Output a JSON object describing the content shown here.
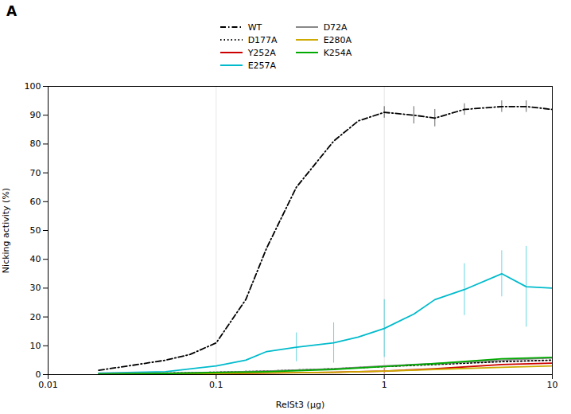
{
  "chart_data": {
    "type": "line",
    "title": "A",
    "xlabel": "RelSt3 (μg)",
    "ylabel": "Nicking activity (%)",
    "log": "x",
    "xlim": [
      0.01,
      10
    ],
    "xticks": [
      0.01,
      0.1,
      1,
      10
    ],
    "ylim": [
      0,
      100
    ],
    "yticks": [
      0,
      10,
      20,
      30,
      40,
      50,
      60,
      70,
      80,
      90,
      100
    ],
    "grid": "x",
    "legend": "top",
    "series": [
      {
        "name": "WT",
        "color": "#000000",
        "line_style": "dashdot",
        "x": [
          0.02,
          0.03,
          0.05,
          0.07,
          0.1,
          0.15,
          0.2,
          0.3,
          0.5,
          0.7,
          1.0,
          1.5,
          2.0,
          3.0,
          5.0,
          7.0,
          10.0
        ],
        "values": [
          1.5,
          3,
          5,
          7,
          11,
          26,
          44,
          65,
          81,
          88,
          91,
          90,
          89,
          92,
          93,
          93,
          92
        ],
        "errors": [
          0,
          0,
          0,
          0,
          0,
          0,
          0,
          0,
          0,
          0,
          2,
          3,
          3,
          2,
          2,
          2,
          2
        ]
      },
      {
        "name": "D177A",
        "color": "#000000",
        "line_style": "dotted",
        "x": [
          0.02,
          0.05,
          0.1,
          0.2,
          0.5,
          1.0,
          2.0,
          5.0,
          10.0
        ],
        "values": [
          0.3,
          0.5,
          0.8,
          1.2,
          2.0,
          2.8,
          3.5,
          4.5,
          5.0
        ],
        "errors": [
          0,
          0,
          0,
          0,
          0,
          0,
          0,
          0,
          0
        ]
      },
      {
        "name": "Y252A",
        "color": "#cc0000",
        "line_style": "solid",
        "x": [
          0.02,
          0.05,
          0.1,
          0.2,
          0.5,
          1.0,
          2.0,
          5.0,
          10.0
        ],
        "values": [
          0.1,
          0.2,
          0.3,
          0.5,
          0.8,
          1.2,
          2.0,
          3.5,
          4.0
        ],
        "errors": [
          0,
          0,
          0,
          0,
          0,
          1,
          0,
          0,
          0
        ]
      },
      {
        "name": "E257A",
        "color": "#00bbcc",
        "line_style": "solid",
        "x": [
          0.02,
          0.05,
          0.1,
          0.15,
          0.2,
          0.3,
          0.5,
          0.7,
          1.0,
          1.5,
          2.0,
          3.0,
          5.0,
          7.0,
          10.0
        ],
        "values": [
          0.5,
          1.0,
          3.0,
          5.0,
          8.0,
          9.5,
          11.0,
          13.0,
          16.0,
          21.0,
          26.0,
          29.5,
          35.0,
          30.5,
          30.0
        ],
        "errors": [
          0,
          0,
          0,
          0,
          0,
          5,
          7,
          0,
          10,
          0,
          0,
          9,
          8,
          14,
          0
        ]
      },
      {
        "name": "D72A",
        "color": "#888888",
        "line_style": "solid",
        "x": [
          0.02,
          0.05,
          0.1,
          0.2,
          0.5,
          1.0,
          2.0,
          5.0,
          10.0
        ],
        "values": [
          0.3,
          0.5,
          0.8,
          1.2,
          2.0,
          3.0,
          3.8,
          5.0,
          5.8
        ],
        "errors": [
          0,
          0,
          0,
          0,
          0,
          0,
          0,
          0,
          0
        ]
      },
      {
        "name": "E280A",
        "color": "#ccaa00",
        "line_style": "solid",
        "x": [
          0.02,
          0.05,
          0.1,
          0.2,
          0.5,
          1.0,
          2.0,
          5.0,
          10.0
        ],
        "values": [
          0.2,
          0.3,
          0.4,
          0.6,
          0.8,
          1.2,
          1.8,
          2.5,
          3.0
        ],
        "errors": [
          0,
          0,
          0,
          0,
          0,
          0,
          0,
          0,
          0
        ]
      },
      {
        "name": "K254A",
        "color": "#00aa00",
        "line_style": "solid",
        "x": [
          0.02,
          0.05,
          0.1,
          0.2,
          0.5,
          1.0,
          2.0,
          5.0,
          10.0
        ],
        "values": [
          0.2,
          0.4,
          0.7,
          1.0,
          1.8,
          2.8,
          3.8,
          5.5,
          6.0
        ],
        "errors": [
          0,
          0,
          0,
          0,
          0,
          0,
          0,
          0,
          0
        ]
      }
    ]
  }
}
